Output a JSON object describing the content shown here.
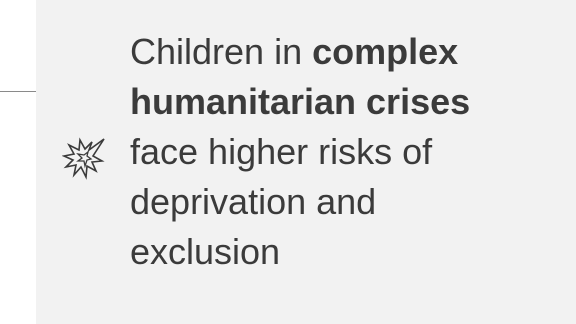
{
  "statement": {
    "line1_prefix": "Children in ",
    "line1_bold": "complex",
    "line2_bold": "humanitarian crises",
    "line3": "face higher risks of",
    "line4": "deprivation and",
    "line5": "exclusion"
  },
  "icon": "explosion-burst-icon",
  "colors": {
    "panel_background": "#f2f2f2",
    "text": "#3b3b3b",
    "icon_stroke": "#3b3b3b",
    "rule": "#8a8a8a"
  }
}
